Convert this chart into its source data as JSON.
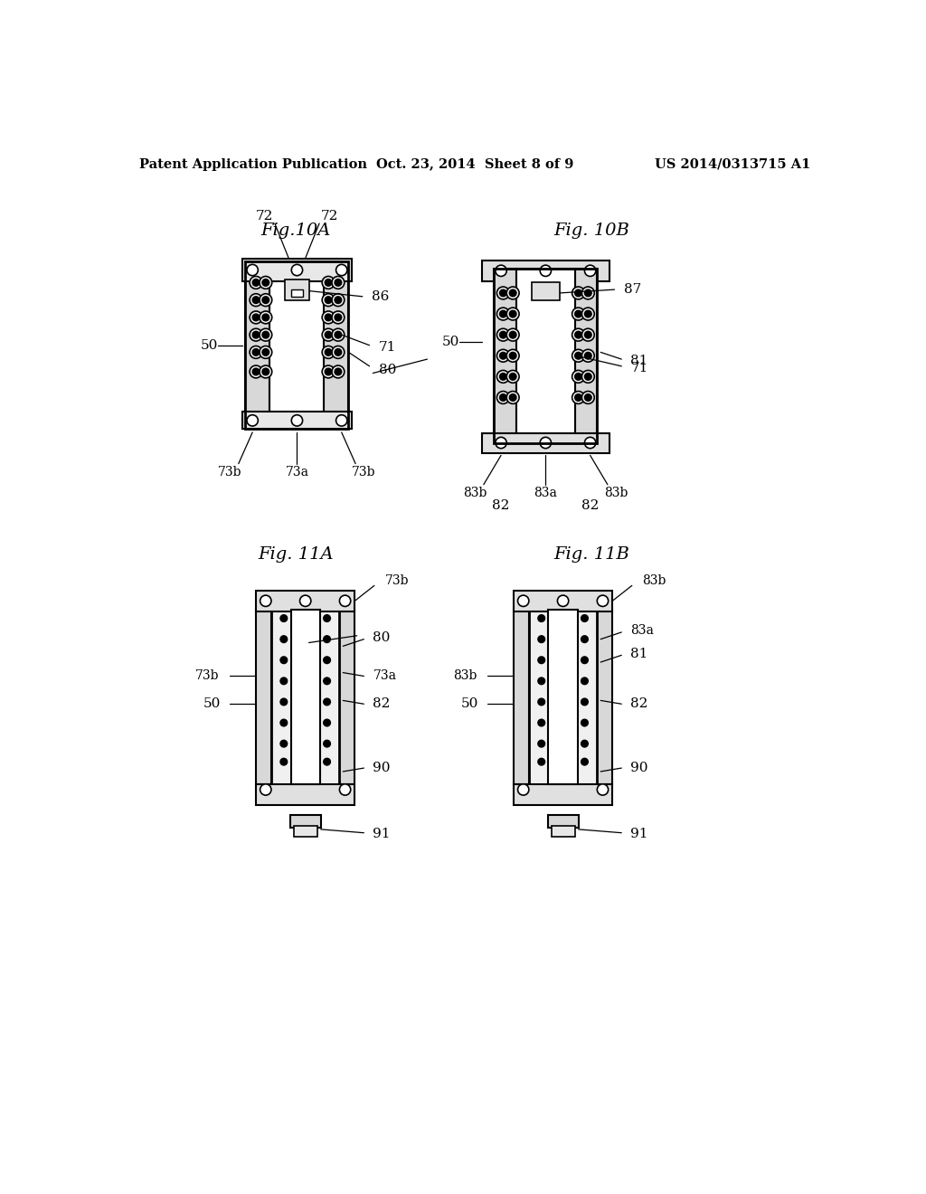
{
  "background_color": "#ffffff",
  "header_left": "Patent Application Publication",
  "header_center": "Oct. 23, 2014  Sheet 8 of 9",
  "header_right": "US 2014/0313715 A1",
  "header_fontsize": 10.5,
  "fig10A_title": "Fig.10A",
  "fig10B_title": "Fig. 10B",
  "fig11A_title": "Fig. 11A",
  "fig11B_title": "Fig. 11B"
}
